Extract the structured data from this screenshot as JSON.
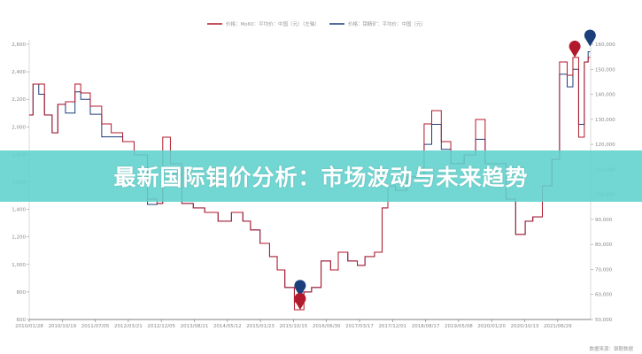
{
  "banner": {
    "title": "最新国际钼价分析：市场波动与未来趋势"
  },
  "source": "数据来源：钢联数据",
  "chart_data": {
    "type": "line",
    "legend_position": "top-center",
    "grid": false,
    "left_axis": {
      "ylim": [
        600,
        2600
      ],
      "ticks": [
        "2,600",
        "2,400",
        "2,200",
        "2,000",
        "1,800",
        "1,600",
        "1,400",
        "1,200",
        "1,000",
        "800",
        "600"
      ]
    },
    "right_axis": {
      "ylim": [
        50000,
        160000
      ],
      "ticks": [
        "160,000",
        "150,000",
        "140,000",
        "130,000",
        "120,000",
        "110,000",
        "100,000",
        "90,000",
        "80,000",
        "70,000",
        "60,000",
        "50,000"
      ]
    },
    "x_ticks": [
      "2010/01/28",
      "2010/10/19",
      "2011/07/05",
      "2012/03/21",
      "2012/12/05",
      "2013/08/21",
      "2014/05/12",
      "2015/01/23",
      "2015/10/15",
      "2016/06/30",
      "2017/03/17",
      "2017/12/01",
      "2018/08/17",
      "2019/05/08",
      "2020/01/20",
      "2020/10/13",
      "2021/06/29"
    ],
    "xlim": [
      "2010-01",
      "2022-05"
    ],
    "series": [
      {
        "name": "价格：Mo60：平均价：中国（元）（左轴）",
        "axis": "left",
        "color": "#b3192c",
        "dates": [
          "2010-01",
          "2010-03",
          "2010-04",
          "2010-06",
          "2010-08",
          "2010-09",
          "2010-12",
          "2011-02",
          "2011-03",
          "2011-07",
          "2011-09",
          "2011-12",
          "2012-03",
          "2012-06",
          "2012-10",
          "2012-11",
          "2013-01",
          "2013-03",
          "2013-07",
          "2013-09",
          "2014-01",
          "2014-04",
          "2014-08",
          "2014-10",
          "2014-12",
          "2015-03",
          "2015-05",
          "2015-07",
          "2015-09",
          "2015-12",
          "2016-02",
          "2016-04",
          "2016-07",
          "2016-09",
          "2016-11",
          "2017-02",
          "2017-04",
          "2017-06",
          "2017-09",
          "2017-10",
          "2017-12",
          "2018-02",
          "2018-06",
          "2018-08",
          "2018-09",
          "2018-12",
          "2019-02",
          "2019-05",
          "2019-09",
          "2019-11",
          "2020-02",
          "2020-05",
          "2020-07",
          "2020-10",
          "2020-12",
          "2021-02",
          "2021-05",
          "2021-07",
          "2021-09",
          "2021-11",
          "2021-12",
          "2022-02",
          "2022-03",
          "2022-04"
        ],
        "values": [
          2086,
          2311,
          2311,
          2086,
          1957,
          2163,
          2182,
          2311,
          2246,
          2150,
          2021,
          1957,
          1893,
          1796,
          1475,
          1443,
          1925,
          1732,
          1443,
          1410,
          1378,
          1314,
          1378,
          1314,
          1250,
          1153,
          1057,
          960,
          832,
          671,
          800,
          832,
          1025,
          960,
          1089,
          1025,
          993,
          1057,
          1089,
          1410,
          1571,
          1539,
          1636,
          1636,
          2021,
          2118,
          1893,
          1732,
          1796,
          2053,
          1732,
          1732,
          1475,
          1218,
          1314,
          1346,
          1571,
          1764,
          2471,
          2375,
          2504,
          1925,
          2471,
          2504
        ]
      },
      {
        "name": "价格：钼精矿：平均价：中国（元）",
        "axis": "right",
        "color": "#1b3f7a",
        "dates": [
          "2010-01",
          "2010-03",
          "2010-04",
          "2010-06",
          "2010-08",
          "2010-09",
          "2010-12",
          "2011-02",
          "2011-03",
          "2011-07",
          "2011-09",
          "2011-12",
          "2012-03",
          "2012-06",
          "2012-10",
          "2012-11",
          "2013-01",
          "2013-03",
          "2013-07",
          "2013-09",
          "2014-01",
          "2014-04",
          "2014-08",
          "2014-10",
          "2014-12",
          "2015-03",
          "2015-05",
          "2015-07",
          "2015-09",
          "2015-12",
          "2016-02",
          "2016-04",
          "2016-07",
          "2016-09",
          "2016-11",
          "2017-02",
          "2017-04",
          "2017-06",
          "2017-09",
          "2017-10",
          "2017-12",
          "2018-02",
          "2018-06",
          "2018-08",
          "2018-09",
          "2018-12",
          "2019-02",
          "2019-05",
          "2019-09",
          "2019-11",
          "2020-02",
          "2020-05",
          "2020-07",
          "2020-10",
          "2020-12",
          "2021-02",
          "2021-05",
          "2021-07",
          "2021-09",
          "2021-11",
          "2021-12",
          "2022-02",
          "2022-03",
          "2022-04"
        ],
        "values": [
          131700,
          144100,
          140000,
          131700,
          124600,
          136000,
          132500,
          141000,
          138000,
          132000,
          123000,
          123000,
          121100,
          115800,
          96000,
          96400,
          110000,
          108000,
          96400,
          94600,
          92800,
          89300,
          92800,
          89300,
          85800,
          80400,
          75100,
          69800,
          62800,
          57000,
          61000,
          62800,
          73400,
          69800,
          76900,
          73400,
          71600,
          75100,
          76900,
          94600,
          103400,
          101600,
          107000,
          107000,
          120000,
          128000,
          118000,
          112300,
          115800,
          122000,
          112300,
          112300,
          98100,
          84000,
          89300,
          91000,
          103400,
          114000,
          148000,
          143000,
          150000,
          128000,
          152900,
          157000
        ]
      }
    ]
  }
}
